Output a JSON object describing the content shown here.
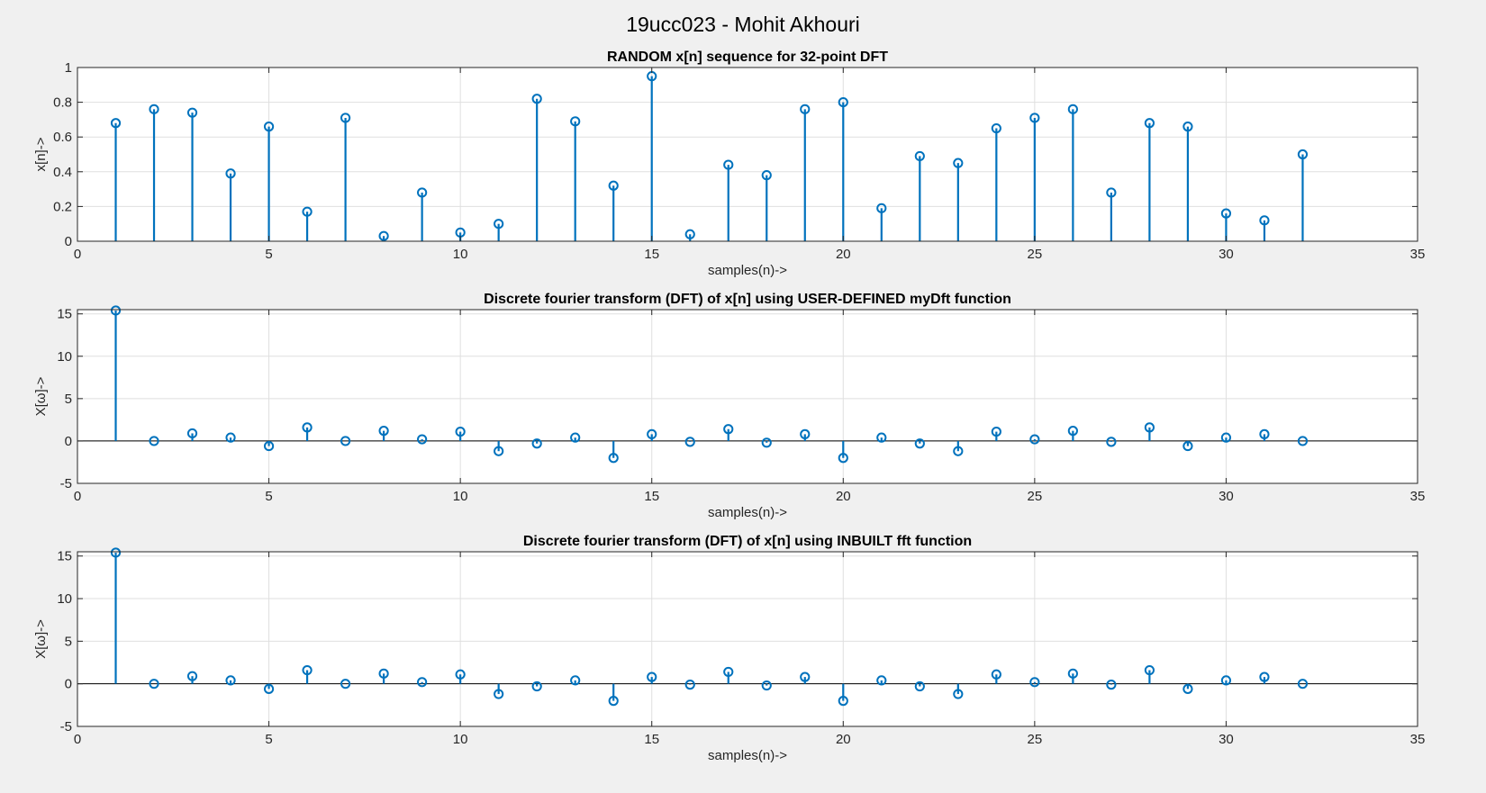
{
  "figure": {
    "suptitle": "19ucc023 - Mohit Akhouri"
  },
  "colors": {
    "background": "#f0f0f0",
    "axes_face": "#ffffff",
    "grid": "#dfdfdf",
    "axis": "#262626",
    "stem": "#0072bd"
  },
  "chart_data": [
    {
      "type": "stem",
      "title": "RANDOM x[n] sequence for 32-point DFT",
      "xlabel": "samples(n)->",
      "ylabel": "x[n]->",
      "xlim": [
        0,
        35
      ],
      "ylim": [
        0,
        1
      ],
      "xticks": [
        0,
        5,
        10,
        15,
        20,
        25,
        30,
        35
      ],
      "yticks": [
        0,
        0.2,
        0.4,
        0.6,
        0.8,
        1
      ],
      "ytick_labels": [
        "0",
        "0.2",
        "0.4",
        "0.6",
        "0.8",
        "1"
      ],
      "grid": true,
      "x": [
        1,
        2,
        3,
        4,
        5,
        6,
        7,
        8,
        9,
        10,
        11,
        12,
        13,
        14,
        15,
        16,
        17,
        18,
        19,
        20,
        21,
        22,
        23,
        24,
        25,
        26,
        27,
        28,
        29,
        30,
        31,
        32
      ],
      "y": [
        0.68,
        0.76,
        0.74,
        0.39,
        0.66,
        0.17,
        0.71,
        0.03,
        0.28,
        0.05,
        0.1,
        0.82,
        0.69,
        0.32,
        0.95,
        0.04,
        0.44,
        0.38,
        0.76,
        0.8,
        0.19,
        0.49,
        0.45,
        0.65,
        0.71,
        0.76,
        0.28,
        0.68,
        0.66,
        0.16,
        0.12,
        0.5
      ]
    },
    {
      "type": "stem",
      "title": "Discrete fourier transform (DFT) of x[n] using USER-DEFINED myDft function",
      "xlabel": "samples(n)->",
      "ylabel": "X[ω]->",
      "xlim": [
        0,
        35
      ],
      "ylim": [
        -5,
        15.5
      ],
      "xticks": [
        0,
        5,
        10,
        15,
        20,
        25,
        30,
        35
      ],
      "yticks": [
        -5,
        0,
        5,
        10,
        15
      ],
      "ytick_labels": [
        "-5",
        "0",
        "5",
        "10",
        "15"
      ],
      "grid": true,
      "x": [
        1,
        2,
        3,
        4,
        5,
        6,
        7,
        8,
        9,
        10,
        11,
        12,
        13,
        14,
        15,
        16,
        17,
        18,
        19,
        20,
        21,
        22,
        23,
        24,
        25,
        26,
        27,
        28,
        29,
        30,
        31,
        32
      ],
      "y": [
        15.4,
        0.0,
        0.9,
        0.4,
        -0.6,
        1.6,
        0.0,
        1.2,
        0.2,
        1.1,
        -1.2,
        -0.3,
        0.4,
        -2.0,
        0.8,
        -0.1,
        1.4,
        -0.2,
        0.8,
        -2.0,
        0.4,
        -0.3,
        -1.2,
        1.1,
        0.2,
        1.2,
        -0.1,
        1.6,
        -0.6,
        0.4,
        0.8,
        0.0
      ]
    },
    {
      "type": "stem",
      "title": "Discrete fourier transform (DFT) of x[n] using INBUILT fft function",
      "xlabel": "samples(n)->",
      "ylabel": "X[ω]->",
      "xlim": [
        0,
        35
      ],
      "ylim": [
        -5,
        15.5
      ],
      "xticks": [
        0,
        5,
        10,
        15,
        20,
        25,
        30,
        35
      ],
      "yticks": [
        -5,
        0,
        5,
        10,
        15
      ],
      "ytick_labels": [
        "-5",
        "0",
        "5",
        "10",
        "15"
      ],
      "grid": true,
      "x": [
        1,
        2,
        3,
        4,
        5,
        6,
        7,
        8,
        9,
        10,
        11,
        12,
        13,
        14,
        15,
        16,
        17,
        18,
        19,
        20,
        21,
        22,
        23,
        24,
        25,
        26,
        27,
        28,
        29,
        30,
        31,
        32
      ],
      "y": [
        15.4,
        0.0,
        0.9,
        0.4,
        -0.6,
        1.6,
        0.0,
        1.2,
        0.2,
        1.1,
        -1.2,
        -0.3,
        0.4,
        -2.0,
        0.8,
        -0.1,
        1.4,
        -0.2,
        0.8,
        -2.0,
        0.4,
        -0.3,
        -1.2,
        1.1,
        0.2,
        1.2,
        -0.1,
        1.6,
        -0.6,
        0.4,
        0.8,
        0.0
      ]
    }
  ]
}
